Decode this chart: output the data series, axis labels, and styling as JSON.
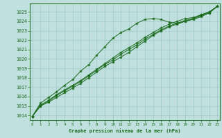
{
  "title": "Graphe pression niveau de la mer (hPa)",
  "background_color": "#c0e0e0",
  "grid_color": "#a0c8c8",
  "line_color": "#1a6b1a",
  "border_color": "#2d7a2d",
  "x_ticks": [
    0,
    1,
    2,
    3,
    4,
    5,
    6,
    7,
    8,
    9,
    10,
    11,
    12,
    13,
    14,
    15,
    16,
    17,
    18,
    19,
    20,
    21,
    22,
    23
  ],
  "y_ticks": [
    1014,
    1015,
    1016,
    1017,
    1018,
    1019,
    1020,
    1021,
    1022,
    1023,
    1024,
    1025
  ],
  "ylim": [
    1013.5,
    1025.9
  ],
  "xlim": [
    -0.3,
    23.3
  ],
  "series": [
    [
      1013.9,
      1015.3,
      1015.9,
      1016.5,
      1017.2,
      1017.8,
      1018.7,
      1019.4,
      1020.4,
      1021.3,
      1022.2,
      1022.8,
      1023.2,
      1023.8,
      1024.2,
      1024.3,
      1024.2,
      1023.9,
      1023.8,
      1024.0,
      1024.3,
      1024.7,
      1025.0,
      1025.6
    ],
    [
      1013.9,
      1015.1,
      1015.6,
      1016.2,
      1016.7,
      1017.2,
      1017.7,
      1018.3,
      1018.9,
      1019.5,
      1020.1,
      1020.7,
      1021.2,
      1021.7,
      1022.3,
      1022.8,
      1023.3,
      1023.7,
      1024.0,
      1024.3,
      1024.4,
      1024.7,
      1025.0,
      1025.6
    ],
    [
      1013.9,
      1015.0,
      1015.5,
      1016.1,
      1016.6,
      1017.1,
      1017.6,
      1018.2,
      1018.8,
      1019.4,
      1019.9,
      1020.5,
      1021.0,
      1021.5,
      1022.1,
      1022.6,
      1023.1,
      1023.5,
      1023.8,
      1024.1,
      1024.3,
      1024.6,
      1024.9,
      1025.6
    ],
    [
      1013.9,
      1015.0,
      1015.4,
      1015.9,
      1016.4,
      1016.9,
      1017.4,
      1018.0,
      1018.6,
      1019.2,
      1019.7,
      1020.2,
      1020.7,
      1021.3,
      1021.9,
      1022.5,
      1023.0,
      1023.4,
      1023.7,
      1024.0,
      1024.2,
      1024.5,
      1024.9,
      1025.6
    ]
  ]
}
